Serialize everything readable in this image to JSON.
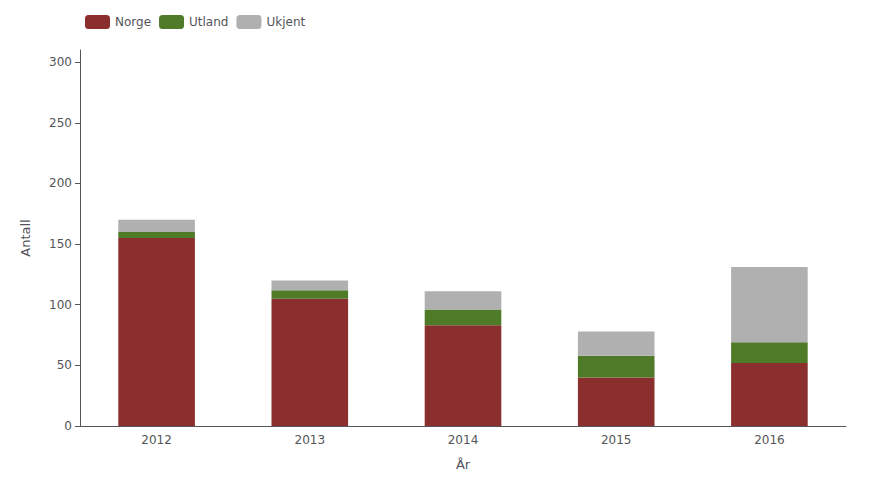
{
  "chart_data": {
    "type": "bar",
    "stacked": true,
    "categories": [
      "2012",
      "2013",
      "2014",
      "2015",
      "2016"
    ],
    "series": [
      {
        "name": "Norge",
        "color": "#8B2E2E",
        "values": [
          155,
          105,
          83,
          40,
          52
        ]
      },
      {
        "name": "Utland",
        "color": "#4F7A28",
        "values": [
          5,
          7,
          13,
          18,
          17
        ]
      },
      {
        "name": "Ukjent",
        "color": "#B0B0B0",
        "values": [
          10,
          8,
          15,
          20,
          62
        ]
      }
    ],
    "xlabel": "År",
    "ylabel": "Antall",
    "ylim": [
      0,
      310
    ],
    "yticks": [
      0,
      50,
      100,
      150,
      200,
      250,
      300
    ],
    "grid": false,
    "legend": "upper left"
  }
}
